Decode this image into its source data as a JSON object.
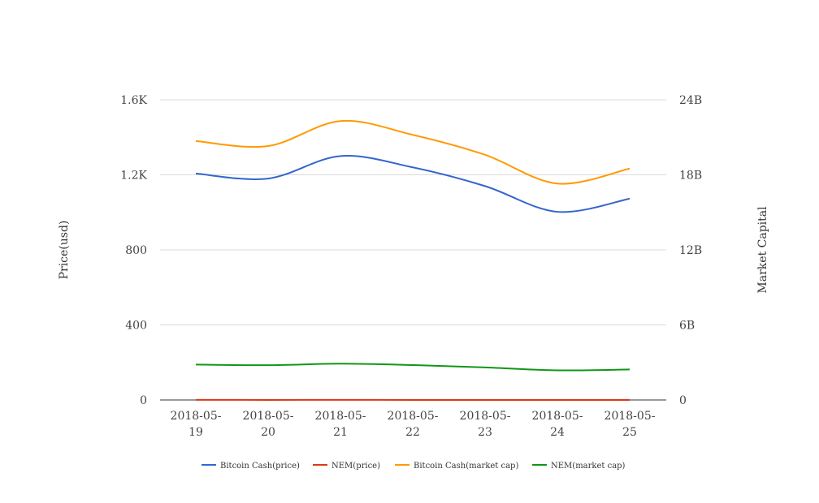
{
  "chart_data": {
    "type": "line",
    "title": "",
    "categories": [
      "2018-05-19",
      "2018-05-20",
      "2018-05-21",
      "2018-05-22",
      "2018-05-23",
      "2018-05-24",
      "2018-05-25"
    ],
    "x_tick_labels": [
      [
        "2018-05-",
        "19"
      ],
      [
        "2018-05-",
        "20"
      ],
      [
        "2018-05-",
        "21"
      ],
      [
        "2018-05-",
        "22"
      ],
      [
        "2018-05-",
        "23"
      ],
      [
        "2018-05-",
        "24"
      ],
      [
        "2018-05-",
        "25"
      ]
    ],
    "left_axis": {
      "label": "Price(usd)",
      "ylim": [
        0,
        1600
      ],
      "ticks": [
        0,
        400,
        800,
        1200,
        1600
      ],
      "tick_labels": [
        "0",
        "400",
        "800",
        "1.2K",
        "1.6K"
      ]
    },
    "right_axis": {
      "label": "Market Capital",
      "ylim": [
        0,
        24000000000
      ],
      "ticks": [
        0,
        6000000000,
        12000000000,
        18000000000,
        24000000000
      ],
      "tick_labels": [
        "0",
        "6B",
        "12B",
        "18B",
        "24B"
      ]
    },
    "grid": true,
    "legend_position": "bottom",
    "series": [
      {
        "name": "Bitcoin Cash(price)",
        "axis": "left",
        "color": "#3366cc",
        "values": [
          1207,
          1180,
          1300,
          1240,
          1140,
          1003,
          1073
        ]
      },
      {
        "name": "NEM(price)",
        "axis": "left",
        "color": "#dc3912",
        "values": [
          0.29,
          0.28,
          0.29,
          0.28,
          0.26,
          0.24,
          0.25
        ]
      },
      {
        "name": "Bitcoin Cash(market cap)",
        "axis": "right",
        "color": "#ff9900",
        "values": [
          20700000000,
          20300000000,
          22300000000,
          21200000000,
          19600000000,
          17300000000,
          18500000000
        ]
      },
      {
        "name": "NEM(market cap)",
        "axis": "right",
        "color": "#109618",
        "values": [
          2830000000,
          2780000000,
          2900000000,
          2790000000,
          2600000000,
          2370000000,
          2440000000
        ]
      }
    ]
  }
}
